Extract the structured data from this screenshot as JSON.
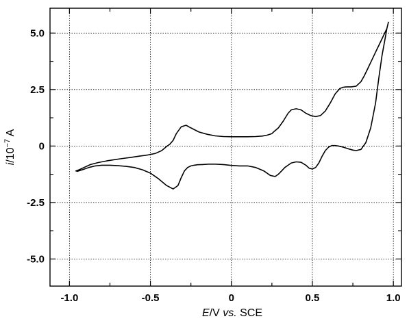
{
  "chart_data": {
    "type": "line",
    "title": "",
    "xlabel": {
      "italic": "E",
      "rest": "/V ",
      "italic2": "vs.",
      "rest2": " SCE"
    },
    "ylabel": {
      "italic": "i",
      "rest": "/10",
      "sup": "−7",
      "unit": " A"
    },
    "xlim": [
      -1.12,
      1.05
    ],
    "ylim": [
      -6.2,
      6.1
    ],
    "grid": true,
    "x_ticks": [
      {
        "value": -1.0,
        "label": "-1.0"
      },
      {
        "value": -0.5,
        "label": "-0.5"
      },
      {
        "value": 0.0,
        "label": "0"
      },
      {
        "value": 0.5,
        "label": "0.5"
      },
      {
        "value": 1.0,
        "label": "1.0"
      }
    ],
    "y_ticks": [
      {
        "value": 5.0,
        "label": "5.0"
      },
      {
        "value": 2.5,
        "label": "2.5"
      },
      {
        "value": 0.0,
        "label": "0"
      },
      {
        "value": -2.5,
        "label": "-2.5"
      },
      {
        "value": -5.0,
        "label": "-5.0"
      }
    ],
    "series": [
      {
        "x": [
          0.97,
          0.96,
          0.94,
          0.92,
          0.9,
          0.88,
          0.86,
          0.84,
          0.82,
          0.8,
          0.77,
          0.74,
          0.71,
          0.69,
          0.67,
          0.64,
          0.61,
          0.58,
          0.55,
          0.52,
          0.49,
          0.46,
          0.43,
          0.4,
          0.37,
          0.35,
          0.32,
          0.29,
          0.26,
          0.25,
          0.22,
          0.19,
          0.15,
          0.1,
          0.05,
          0.0,
          -0.05,
          -0.1,
          -0.15,
          -0.2,
          -0.25,
          -0.28,
          -0.31,
          -0.34,
          -0.36,
          -0.38,
          -0.4,
          -0.43,
          -0.47,
          -0.52,
          -0.57,
          -0.62,
          -0.67,
          -0.72,
          -0.77,
          -0.82,
          -0.87,
          -0.91,
          -0.94,
          -0.96,
          -0.95,
          -0.92,
          -0.88,
          -0.84,
          -0.8,
          -0.75,
          -0.7,
          -0.65,
          -0.6,
          -0.55,
          -0.5,
          -0.45,
          -0.4,
          -0.36,
          -0.33,
          -0.31,
          -0.29,
          -0.27,
          -0.25,
          -0.23,
          -0.21,
          -0.18,
          -0.14,
          -0.1,
          -0.05,
          0.0,
          0.05,
          0.1,
          0.15,
          0.2,
          0.24,
          0.27,
          0.29,
          0.31,
          0.33,
          0.35,
          0.37,
          0.4,
          0.43,
          0.46,
          0.48,
          0.5,
          0.52,
          0.54,
          0.56,
          0.58,
          0.6,
          0.62,
          0.64,
          0.66,
          0.69,
          0.72,
          0.75,
          0.77,
          0.8,
          0.83,
          0.86,
          0.89,
          0.91,
          0.93,
          0.95,
          0.96,
          0.97,
          0.97
        ],
        "y": [
          5.5,
          5.2,
          4.9,
          4.6,
          4.3,
          4.0,
          3.7,
          3.4,
          3.1,
          2.85,
          2.65,
          2.62,
          2.62,
          2.6,
          2.55,
          2.3,
          1.9,
          1.55,
          1.35,
          1.3,
          1.35,
          1.45,
          1.6,
          1.65,
          1.6,
          1.45,
          1.1,
          0.8,
          0.62,
          0.55,
          0.48,
          0.44,
          0.42,
          0.41,
          0.41,
          0.41,
          0.42,
          0.45,
          0.52,
          0.62,
          0.8,
          0.92,
          0.85,
          0.55,
          0.25,
          0.08,
          -0.02,
          -0.2,
          -0.33,
          -0.4,
          -0.45,
          -0.5,
          -0.55,
          -0.6,
          -0.66,
          -0.73,
          -0.82,
          -0.95,
          -1.05,
          -1.1,
          -1.12,
          -1.05,
          -0.95,
          -0.88,
          -0.85,
          -0.85,
          -0.87,
          -0.9,
          -0.95,
          -1.05,
          -1.2,
          -1.45,
          -1.75,
          -1.9,
          -1.75,
          -1.4,
          -1.1,
          -0.95,
          -0.88,
          -0.85,
          -0.83,
          -0.82,
          -0.8,
          -0.8,
          -0.82,
          -0.86,
          -0.88,
          -0.88,
          -0.95,
          -1.1,
          -1.3,
          -1.35,
          -1.25,
          -1.1,
          -0.95,
          -0.85,
          -0.75,
          -0.7,
          -0.72,
          -0.85,
          -0.98,
          -1.02,
          -0.95,
          -0.75,
          -0.45,
          -0.2,
          -0.05,
          0.02,
          0.02,
          0.0,
          -0.05,
          -0.12,
          -0.18,
          -0.2,
          -0.15,
          0.15,
          0.8,
          1.9,
          3.0,
          4.0,
          4.8,
          5.2,
          5.5,
          5.5
        ]
      }
    ]
  }
}
